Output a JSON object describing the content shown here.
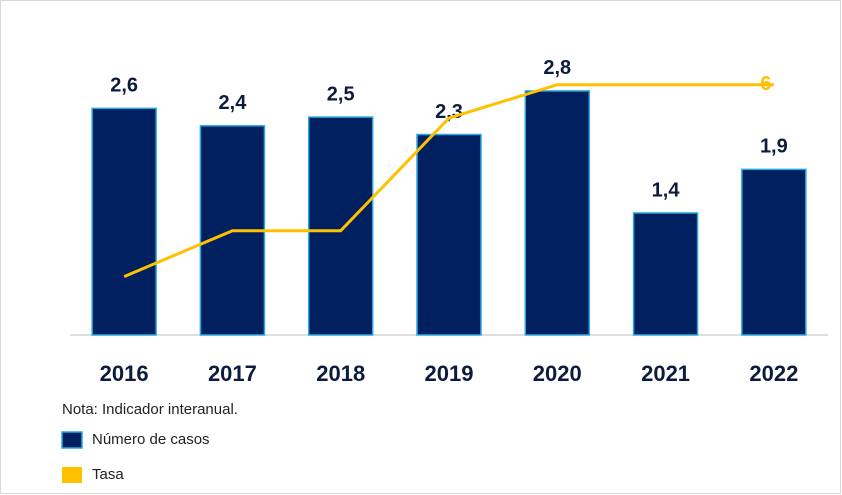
{
  "chart_data": {
    "type": "bar",
    "categories": [
      "2016",
      "2017",
      "2018",
      "2019",
      "2020",
      "2021",
      "2022"
    ],
    "series": [
      {
        "name": "Número de casos",
        "color": "#002060",
        "values": [
          2.6,
          2.4,
          2.5,
          2.3,
          2.8,
          1.4,
          1.9
        ],
        "value_labels": [
          "2,6",
          "2,4",
          "2,5",
          "2,3",
          "2,8",
          "1,4",
          "1,9"
        ]
      },
      {
        "name": "Tasa",
        "type": "line",
        "axis": "y2",
        "color": "#ffc000",
        "values": [
          1.4,
          2.5,
          2.5,
          5.2,
          6,
          6,
          6
        ]
      }
    ],
    "ylim": [
      0,
      3.35
    ],
    "y2lim": [
      0,
      7
    ],
    "note": "Nota: Indicador interanual."
  }
}
